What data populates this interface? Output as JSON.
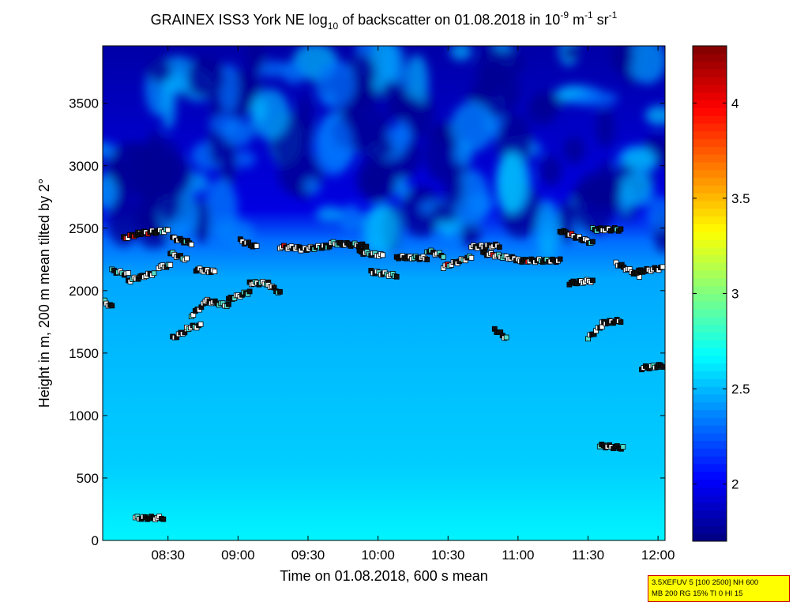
{
  "chart_data": {
    "type": "heatmap",
    "title": {
      "prefix": "GRAINEX ISS3 York NE log",
      "sub": "10",
      "mid": " of backscatter on 01.08.2018 in 10",
      "sup1": "-9",
      "unit1": " m",
      "sup2": "-1",
      "unit2": " sr",
      "sup3": "-1"
    },
    "xlabel": "Time on 01.08.2018, 600 s mean",
    "ylabel": "Height in m, 200 m mean tilted by 2°",
    "x_ticks": [
      "08:30",
      "09:00",
      "09:30",
      "10:00",
      "10:30",
      "11:00",
      "11:30",
      "12:00"
    ],
    "x_tick_minutes": [
      510,
      540,
      570,
      600,
      630,
      660,
      690,
      720
    ],
    "xlim_minutes": [
      482,
      723
    ],
    "y_ticks": [
      "0",
      "500",
      "1000",
      "1500",
      "2000",
      "2500",
      "3000",
      "3500"
    ],
    "y_tick_values": [
      0,
      500,
      1000,
      1500,
      2000,
      2500,
      3000,
      3500
    ],
    "ylim": [
      0,
      3960
    ],
    "colorbar": {
      "ticks": [
        "2",
        "2.5",
        "3",
        "3.5",
        "4"
      ],
      "tick_values": [
        2,
        2.5,
        3,
        3.5,
        4
      ],
      "range": [
        1.7,
        4.3
      ]
    },
    "background_profile": [
      {
        "height": 0,
        "value": 2.65
      },
      {
        "height": 600,
        "value": 2.55
      },
      {
        "height": 1500,
        "value": 2.5
      },
      {
        "height": 2100,
        "value": 2.45
      },
      {
        "height": 2400,
        "value": 2.3
      },
      {
        "height": 2650,
        "value": 1.95
      },
      {
        "height": 3960,
        "value": 1.8
      }
    ],
    "cloud_base_segments": [
      {
        "t0": 482,
        "t1": 486,
        "h0": 1920,
        "h1": 1870
      },
      {
        "t0": 486,
        "t1": 493,
        "h0": 2160,
        "h1": 2130
      },
      {
        "t0": 491,
        "t1": 498,
        "h0": 2420,
        "h1": 2460
      },
      {
        "t0": 493,
        "t1": 504,
        "h0": 2080,
        "h1": 2140
      },
      {
        "t0": 498,
        "t1": 510,
        "h0": 2460,
        "h1": 2480
      },
      {
        "t0": 506,
        "t1": 511,
        "h0": 2190,
        "h1": 2200
      },
      {
        "t0": 511,
        "t1": 518,
        "h0": 2300,
        "h1": 2250
      },
      {
        "t0": 512,
        "t1": 520,
        "h0": 2420,
        "h1": 2380
      },
      {
        "t0": 512,
        "t1": 518,
        "h0": 1620,
        "h1": 1680
      },
      {
        "t0": 518,
        "t1": 524,
        "h0": 1700,
        "h1": 1720
      },
      {
        "t0": 520,
        "t1": 526,
        "h0": 1800,
        "h1": 1900
      },
      {
        "t0": 522,
        "t1": 530,
        "h0": 2170,
        "h1": 2150
      },
      {
        "t0": 526,
        "t1": 536,
        "h0": 1920,
        "h1": 1880
      },
      {
        "t0": 536,
        "t1": 545,
        "h0": 1930,
        "h1": 1990
      },
      {
        "t0": 541,
        "t1": 548,
        "h0": 2400,
        "h1": 2350
      },
      {
        "t0": 545,
        "t1": 553,
        "h0": 2060,
        "h1": 2060
      },
      {
        "t0": 553,
        "t1": 558,
        "h0": 2050,
        "h1": 1980
      },
      {
        "t0": 558,
        "t1": 567,
        "h0": 2350,
        "h1": 2340
      },
      {
        "t0": 567,
        "t1": 580,
        "h0": 2330,
        "h1": 2360
      },
      {
        "t0": 580,
        "t1": 595,
        "h0": 2380,
        "h1": 2360
      },
      {
        "t0": 592,
        "t1": 602,
        "h0": 2310,
        "h1": 2280
      },
      {
        "t0": 597,
        "t1": 608,
        "h0": 2150,
        "h1": 2120
      },
      {
        "t0": 608,
        "t1": 621,
        "h0": 2270,
        "h1": 2260
      },
      {
        "t0": 621,
        "t1": 628,
        "h0": 2320,
        "h1": 2280
      },
      {
        "t0": 628,
        "t1": 640,
        "h0": 2190,
        "h1": 2270
      },
      {
        "t0": 640,
        "t1": 652,
        "h0": 2350,
        "h1": 2360
      },
      {
        "t0": 645,
        "t1": 660,
        "h0": 2300,
        "h1": 2250
      },
      {
        "t0": 660,
        "t1": 678,
        "h0": 2240,
        "h1": 2240
      },
      {
        "t0": 650,
        "t1": 655,
        "h0": 1690,
        "h1": 1620
      },
      {
        "t0": 678,
        "t1": 692,
        "h0": 2480,
        "h1": 2380
      },
      {
        "t0": 682,
        "t1": 692,
        "h0": 2060,
        "h1": 2080
      },
      {
        "t0": 690,
        "t1": 696,
        "h0": 1620,
        "h1": 1720
      },
      {
        "t0": 696,
        "t1": 704,
        "h0": 1740,
        "h1": 1760
      },
      {
        "t0": 692,
        "t1": 704,
        "h0": 2490,
        "h1": 2490
      },
      {
        "t0": 702,
        "t1": 712,
        "h0": 2220,
        "h1": 2120
      },
      {
        "t0": 710,
        "t1": 722,
        "h0": 2150,
        "h1": 2180
      },
      {
        "t0": 713,
        "t1": 722,
        "h0": 1380,
        "h1": 1400
      },
      {
        "t0": 695,
        "t1": 705,
        "h0": 760,
        "h1": 740
      },
      {
        "t0": 496,
        "t1": 508,
        "h0": 180,
        "h1": 180
      }
    ]
  },
  "info_box": {
    "line1": "3.5XEFUV 5 [100 2500] NH 600",
    "line2": "MB 200 RG 15% TI 0 HI 15"
  }
}
